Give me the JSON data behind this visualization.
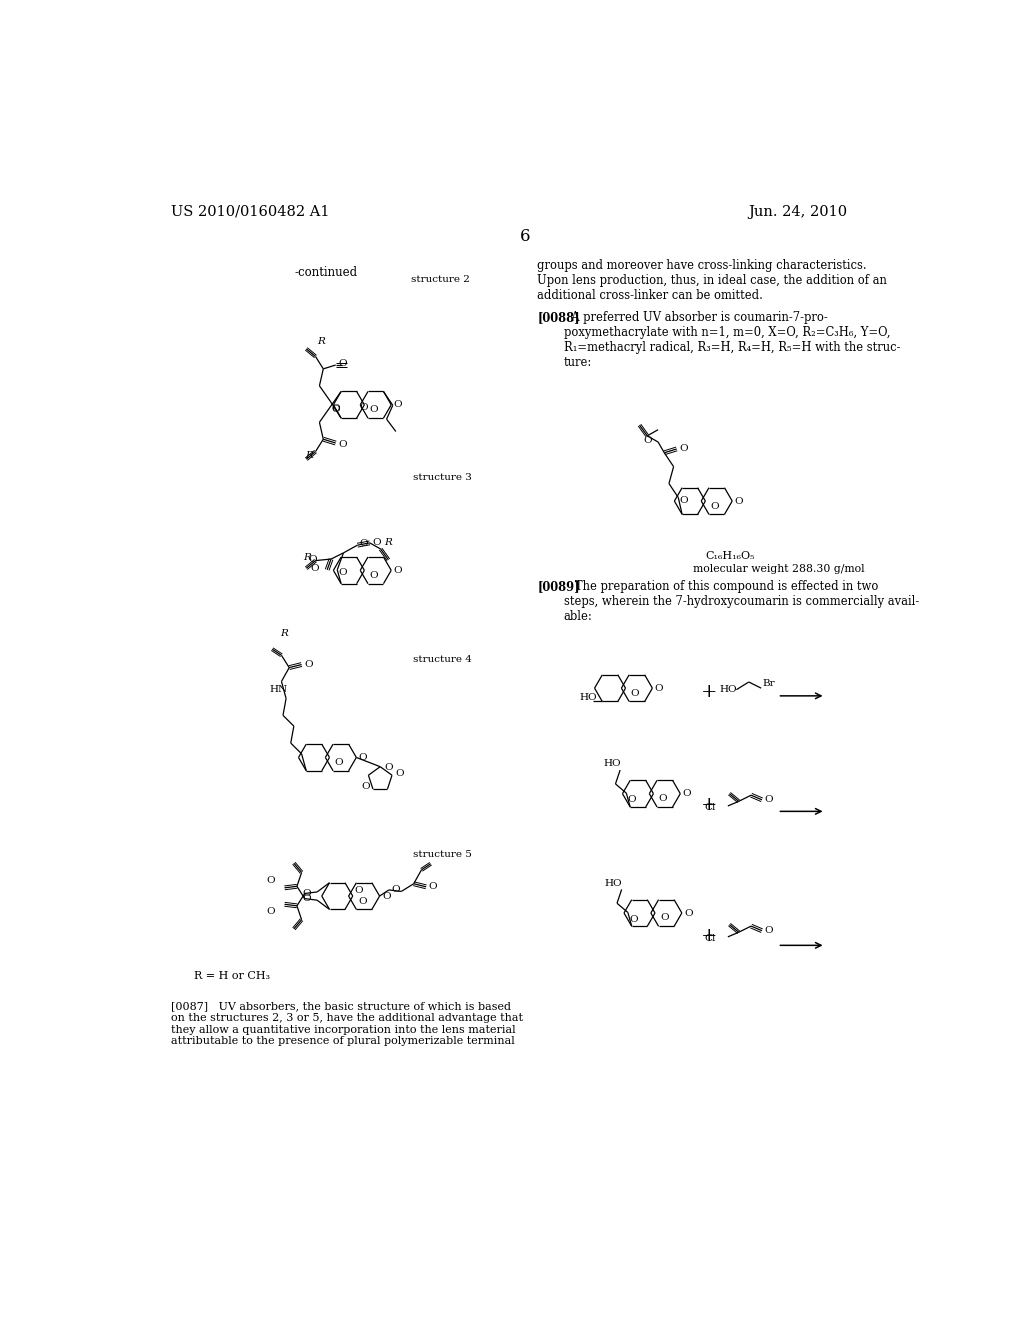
{
  "page_number": "6",
  "patent_number": "US 2010/0160482 A1",
  "patent_date": "Jun. 24, 2010",
  "background_color": "#ffffff",
  "text_color": "#000000",
  "continued_label": "-continued",
  "right_text_top": "groups and moreover have cross-linking characteristics.\nUpon lens production, thus, in ideal case, the addition of an\nadditional cross-linker can be omitted.",
  "p0088_bold": "[0088]",
  "p0088_rest": "  A preferred UV absorber is coumarin-7-pro-\npoxymethacrylate with n=1, m=0, X=O, R₂=C₃H₆, Y=O,\nR₁=methacryl radical, R₃=H, R₄=H, R₅=H with the struc-\nture:",
  "molecular_formula": "C₁₆H₁₆O₅",
  "molecular_weight": "molecular weight 288.30 g/mol",
  "p0089_bold": "[0089]",
  "p0089_rest": "   The preparation of this compound is effected in two\nsteps, wherein the 7-hydroxycoumarin is commercially avail-\nable:",
  "p0087_text": "[0087]   UV absorbers, the basic structure of which is based\non the structures 2, 3 or 5, have the additional advantage that\nthey allow a quantitative incorporation into the lens material\nattributable to the presence of plural polymerizable terminal",
  "R_H_CH3": "R = H or CH₃"
}
